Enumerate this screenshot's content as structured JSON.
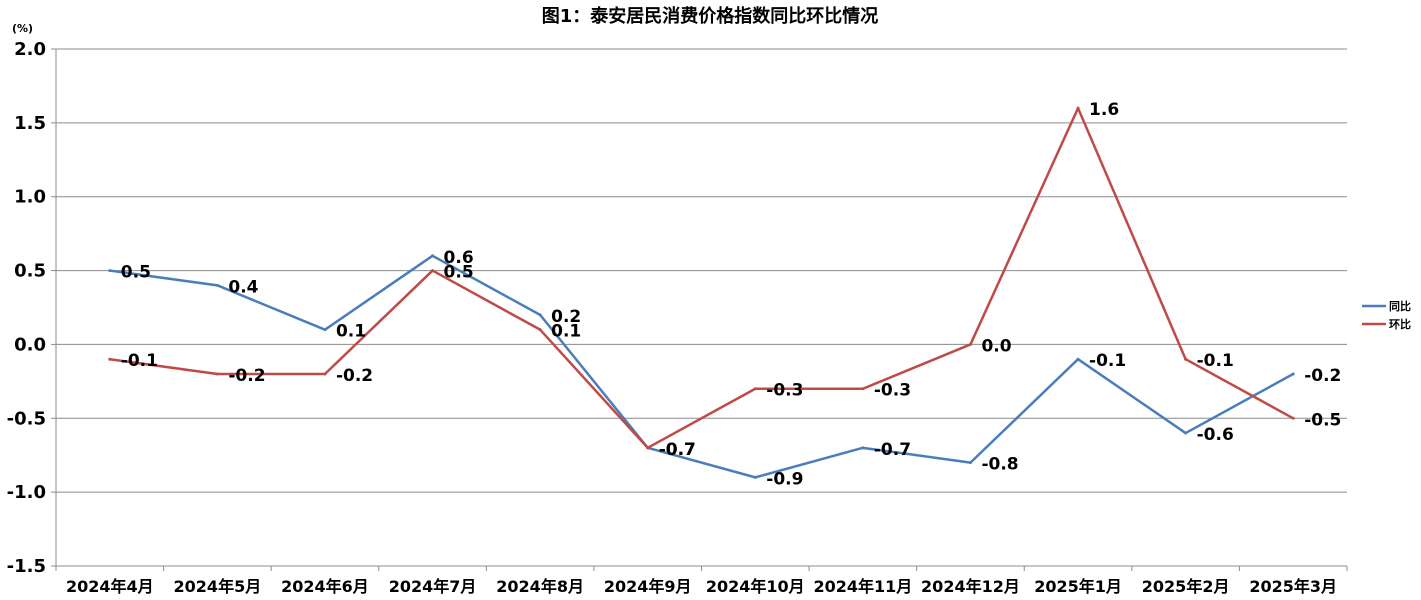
{
  "chart_data": {
    "type": "line",
    "title": "图1：泰安居民消费价格指数同比环比情况",
    "ylabel": "(%)",
    "xlabel": "",
    "ylim": [
      -1.5,
      2.0
    ],
    "yticks": [
      "2.0",
      "1.5",
      "1.0",
      "0.5",
      "0.0",
      "-0.5",
      "-1.0",
      "-1.5"
    ],
    "ytick_values": [
      2.0,
      1.5,
      1.0,
      0.5,
      0.0,
      -0.5,
      -1.0,
      -1.5
    ],
    "grid": true,
    "legend_position": "right",
    "categories": [
      "2024年4月",
      "2024年5月",
      "2024年6月",
      "2024年7月",
      "2024年8月",
      "2024年9月",
      "2024年10月",
      "2024年11月",
      "2024年12月",
      "2025年1月",
      "2025年2月",
      "2025年3月"
    ],
    "series": [
      {
        "name": "同比",
        "color": "#4a7ebb",
        "values": [
          0.5,
          0.4,
          0.1,
          0.6,
          0.2,
          -0.7,
          -0.9,
          -0.7,
          -0.8,
          -0.1,
          -0.6,
          -0.2
        ],
        "labels": [
          "0.5",
          "0.4",
          "0.1",
          "0.6",
          "0.2",
          "-0.7",
          "-0.9",
          "-0.7",
          "-0.8",
          "-0.1",
          "-0.6",
          "-0.2"
        ]
      },
      {
        "name": "环比",
        "color": "#be4b48",
        "values": [
          -0.1,
          -0.2,
          -0.2,
          0.5,
          0.1,
          -0.7,
          -0.3,
          -0.3,
          0.0,
          1.6,
          -0.1,
          -0.5
        ],
        "labels": [
          "-0.1",
          "-0.2",
          "-0.2",
          "0.5",
          "0.1",
          "-0.7",
          "-0.3",
          "-0.3",
          "0.0",
          "1.6",
          "-0.1",
          "-0.5"
        ]
      }
    ]
  }
}
